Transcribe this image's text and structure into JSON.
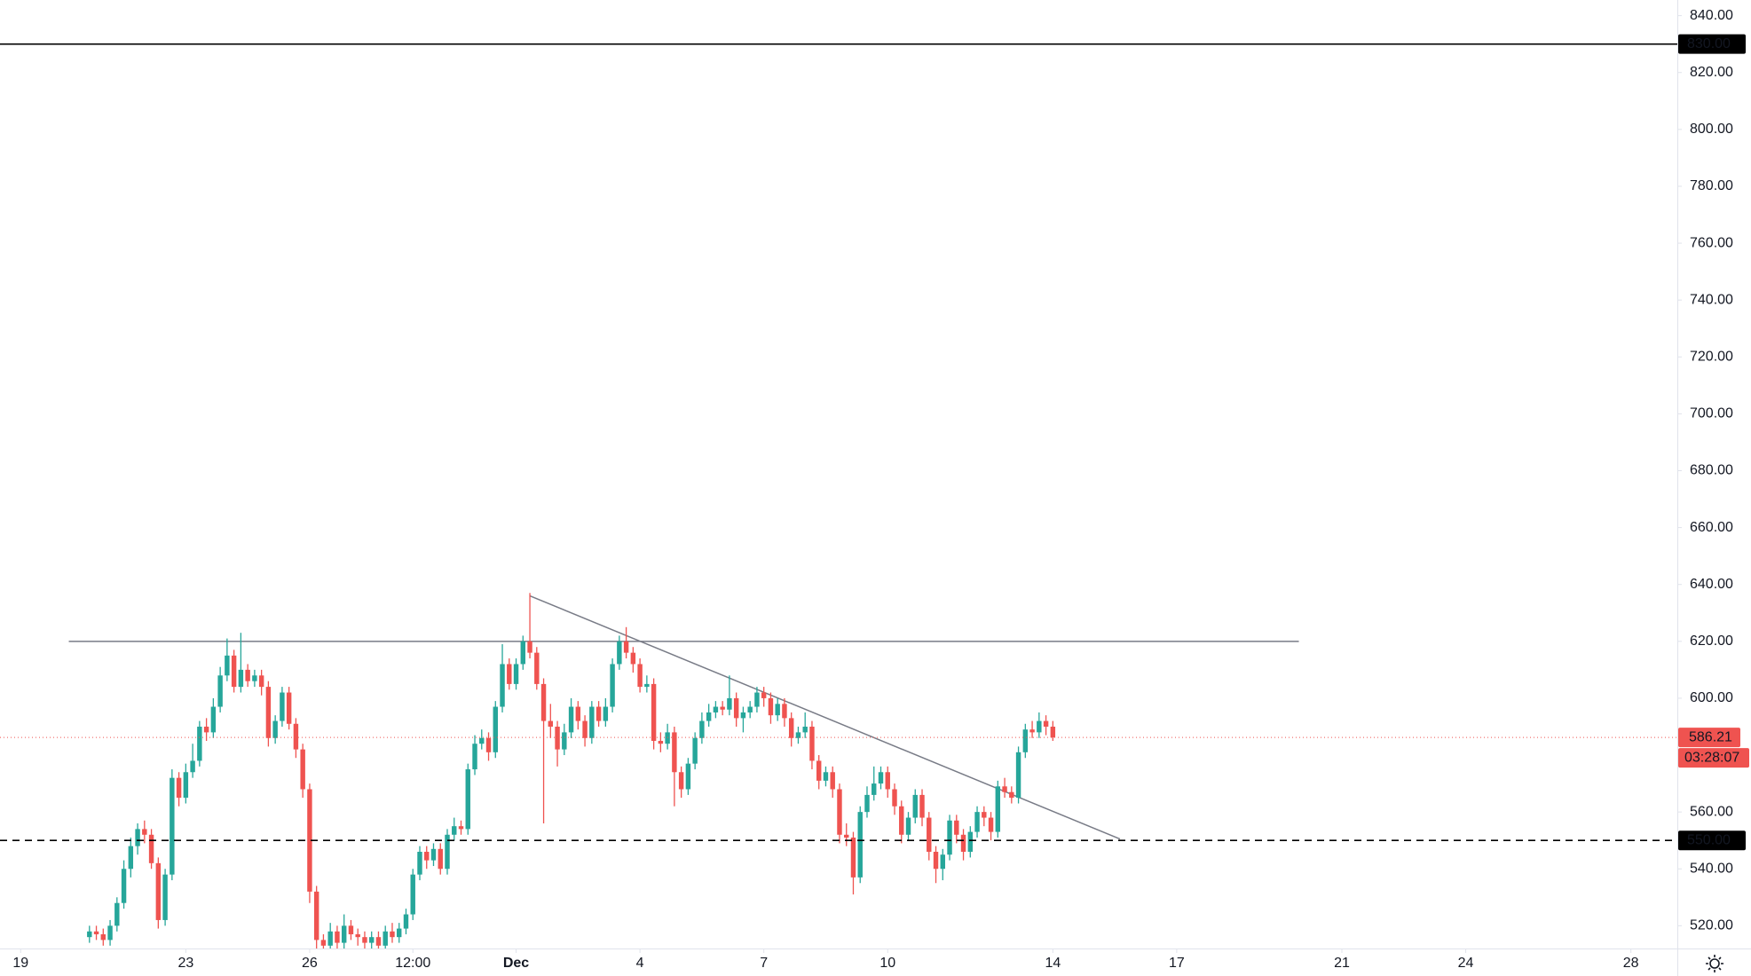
{
  "chart_data": {
    "type": "candlestick",
    "up_color": "#26a69a",
    "down_color": "#ef5350",
    "xlim": [
      -12,
      963
    ],
    "ylim": [
      512,
      845.5
    ],
    "xticks": [
      {
        "value": 0,
        "label": "19"
      },
      {
        "value": 96,
        "label": "23"
      },
      {
        "value": 168,
        "label": "26"
      },
      {
        "value": 228,
        "label": "12:00"
      },
      {
        "value": 288,
        "label": "Dec"
      },
      {
        "value": 360,
        "label": "4"
      },
      {
        "value": 432,
        "label": "7"
      },
      {
        "value": 504,
        "label": "10"
      },
      {
        "value": 600,
        "label": "14"
      },
      {
        "value": 672,
        "label": "17"
      },
      {
        "value": 768,
        "label": "21"
      },
      {
        "value": 840,
        "label": "24"
      },
      {
        "value": 936,
        "label": "28"
      }
    ],
    "yticks": [
      {
        "value": 520,
        "label": "520.00"
      },
      {
        "value": 540,
        "label": "540.00"
      },
      {
        "value": 560,
        "label": "560.00"
      },
      {
        "value": 580,
        "label": "580.00"
      },
      {
        "value": 600,
        "label": "600.00"
      },
      {
        "value": 620,
        "label": "620.00"
      },
      {
        "value": 640,
        "label": "640.00"
      },
      {
        "value": 660,
        "label": "660.00"
      },
      {
        "value": 680,
        "label": "680.00"
      },
      {
        "value": 700,
        "label": "700.00"
      },
      {
        "value": 720,
        "label": "720.00"
      },
      {
        "value": 740,
        "label": "740.00"
      },
      {
        "value": 760,
        "label": "760.00"
      },
      {
        "value": 780,
        "label": "780.00"
      },
      {
        "value": 800,
        "label": "800.00"
      },
      {
        "value": 820,
        "label": "820.00"
      },
      {
        "value": 840,
        "label": "840.00"
      }
    ],
    "x": [
      40,
      44,
      48,
      52,
      56,
      60,
      64,
      68,
      72,
      76,
      80,
      84,
      88,
      92,
      96,
      100,
      104,
      108,
      112,
      116,
      120,
      124,
      128,
      132,
      136,
      140,
      144,
      148,
      152,
      156,
      160,
      164,
      168,
      172,
      176,
      180,
      184,
      188,
      192,
      196,
      200,
      204,
      208,
      212,
      216,
      220,
      224,
      228,
      232,
      236,
      240,
      244,
      248,
      252,
      256,
      260,
      264,
      268,
      272,
      276,
      280,
      284,
      288,
      292,
      296,
      300,
      304,
      308,
      312,
      316,
      320,
      324,
      328,
      332,
      336,
      340,
      344,
      348,
      352,
      356,
      360,
      364,
      368,
      372,
      376,
      380,
      384,
      388,
      392,
      396,
      400,
      404,
      408,
      412,
      416,
      420,
      424,
      428,
      432,
      436,
      440,
      444,
      448,
      452,
      456,
      460,
      464,
      468,
      472,
      476,
      480,
      484,
      488,
      492,
      496,
      500,
      504,
      508,
      512,
      516,
      520,
      524,
      528,
      532,
      536,
      540,
      544,
      548,
      552,
      556,
      560,
      564,
      568,
      572,
      576,
      580,
      584,
      588,
      592,
      596,
      600
    ],
    "open": [
      516,
      518,
      517,
      515,
      520,
      528,
      540,
      548,
      554,
      552,
      542,
      522,
      538,
      572,
      565,
      574,
      578,
      590,
      588,
      597,
      608,
      615,
      604,
      610,
      606,
      608,
      604,
      586,
      592,
      602,
      591,
      582,
      568,
      532,
      515,
      513,
      518,
      514,
      520,
      517,
      516,
      514,
      516,
      513,
      518,
      516,
      519,
      524,
      538,
      546,
      543,
      547,
      540,
      552,
      555,
      554,
      575,
      584,
      586,
      581,
      597,
      612,
      605,
      612,
      620,
      616,
      605,
      592,
      590,
      582,
      588,
      597,
      592,
      586,
      597,
      592,
      597,
      612,
      620,
      616,
      612,
      604,
      605,
      585,
      584,
      588,
      574,
      568,
      577,
      586,
      592,
      595,
      597,
      596,
      600,
      593,
      595,
      597,
      602,
      600,
      594,
      598,
      593,
      586,
      588,
      590,
      578,
      571,
      574,
      568,
      552,
      551,
      537,
      560,
      566,
      570,
      574,
      568,
      562,
      552,
      558,
      566,
      558,
      546,
      540,
      545,
      557,
      552,
      546,
      553,
      560,
      558,
      553,
      569,
      567,
      565,
      581,
      589,
      588,
      592,
      590
    ],
    "high": [
      520,
      520,
      519,
      522,
      530,
      543,
      551,
      556,
      557,
      554,
      544,
      540,
      575,
      574,
      577,
      584,
      592,
      593,
      600,
      611,
      621,
      617,
      623,
      612,
      610,
      610,
      606,
      594,
      604,
      604,
      593,
      584,
      570,
      534,
      517,
      521,
      520,
      524,
      522,
      519,
      518,
      518,
      518,
      520,
      521,
      521,
      526,
      540,
      548,
      548,
      549,
      549,
      554,
      558,
      557,
      577,
      587,
      589,
      588,
      599,
      619,
      614,
      614,
      622,
      637,
      618,
      607,
      598,
      592,
      591,
      600,
      599,
      594,
      599,
      599,
      600,
      614,
      622,
      625,
      618,
      614,
      608,
      607,
      588,
      591,
      590,
      576,
      579,
      588,
      595,
      598,
      599,
      599,
      608,
      602,
      597,
      599,
      604,
      604,
      602,
      600,
      600,
      595,
      590,
      595,
      592,
      580,
      576,
      576,
      570,
      556,
      553,
      562,
      569,
      576,
      576,
      576,
      570,
      564,
      560,
      568,
      568,
      560,
      548,
      547,
      559,
      559,
      554,
      555,
      562,
      562,
      560,
      571,
      572,
      569,
      583,
      591,
      592,
      595,
      594,
      592
    ],
    "low": [
      514,
      515,
      513,
      513,
      518,
      526,
      537,
      545,
      549,
      540,
      519,
      520,
      536,
      562,
      563,
      572,
      576,
      585,
      586,
      595,
      606,
      602,
      602,
      604,
      604,
      601,
      583,
      584,
      590,
      589,
      579,
      565,
      528,
      512,
      510,
      511,
      512,
      512,
      515,
      513,
      512,
      512,
      511,
      511,
      514,
      514,
      517,
      522,
      536,
      540,
      541,
      538,
      538,
      550,
      552,
      552,
      573,
      582,
      578,
      579,
      595,
      603,
      603,
      610,
      614,
      603,
      556,
      586,
      576,
      580,
      586,
      589,
      583,
      584,
      590,
      590,
      595,
      610,
      614,
      609,
      602,
      602,
      582,
      581,
      582,
      562,
      565,
      566,
      575,
      584,
      590,
      593,
      594,
      594,
      590,
      588,
      593,
      595,
      597,
      591,
      592,
      590,
      583,
      584,
      586,
      575,
      568,
      569,
      565,
      549,
      548,
      531,
      535,
      558,
      564,
      568,
      565,
      559,
      549,
      550,
      556,
      555,
      543,
      535,
      536,
      543,
      549,
      543,
      544,
      551,
      555,
      550,
      551,
      565,
      563,
      563,
      579,
      586,
      586,
      587,
      585
    ],
    "close": [
      518,
      517,
      515,
      520,
      528,
      540,
      548,
      554,
      552,
      542,
      522,
      538,
      572,
      565,
      574,
      578,
      590,
      588,
      597,
      608,
      615,
      604,
      610,
      606,
      608,
      604,
      586,
      592,
      602,
      591,
      582,
      568,
      532,
      515,
      513,
      518,
      514,
      520,
      517,
      516,
      514,
      516,
      513,
      518,
      516,
      519,
      524,
      538,
      546,
      543,
      547,
      540,
      552,
      555,
      554,
      575,
      584,
      586,
      581,
      597,
      612,
      605,
      612,
      620,
      616,
      605,
      592,
      590,
      582,
      588,
      597,
      592,
      586,
      597,
      592,
      597,
      612,
      620,
      616,
      612,
      604,
      605,
      585,
      584,
      588,
      574,
      568,
      577,
      586,
      592,
      595,
      597,
      596,
      600,
      593,
      595,
      597,
      602,
      600,
      594,
      598,
      593,
      586,
      588,
      590,
      578,
      571,
      574,
      568,
      552,
      551,
      537,
      560,
      566,
      570,
      574,
      568,
      562,
      552,
      558,
      566,
      558,
      546,
      540,
      545,
      557,
      552,
      546,
      553,
      560,
      558,
      553,
      569,
      567,
      565,
      581,
      589,
      588,
      592,
      590,
      586.21
    ],
    "hlines": [
      {
        "value": 830,
        "label": "830.00",
        "style": "solid",
        "color": "#000000"
      },
      {
        "value": 550,
        "label": "550.00",
        "style": "dashed",
        "color": "#000000"
      }
    ],
    "last_price": {
      "value": 586.21,
      "label": "586.21",
      "countdown": "03:28:07",
      "color": "#ef5350"
    },
    "trendlines": [
      {
        "x": [
          28,
          743
        ],
        "y": [
          620,
          620
        ],
        "color": "#787b86"
      },
      {
        "x": [
          296,
          639
        ],
        "y": [
          636,
          550.5
        ],
        "color": "#787b86"
      }
    ]
  }
}
